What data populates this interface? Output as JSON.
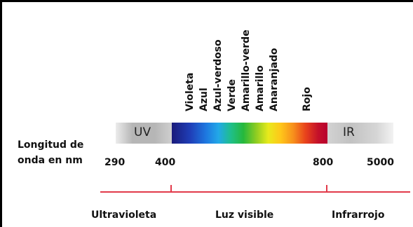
{
  "colors": {
    "labels": [
      "Violeta",
      "Azul",
      "Azul-verdoso",
      "Verde",
      "Amarillo-verde",
      "Amarillo",
      "Anaranjado",
      "Rojo"
    ]
  },
  "bar": {
    "uv_label": "UV",
    "ir_label": "IR"
  },
  "axis": {
    "caption_line1": "Longitud de",
    "caption_line2": "onda en nm",
    "ticks": [
      "290",
      "400",
      "800",
      "5000"
    ]
  },
  "ranges": {
    "ultraviolet": "Ultravioleta",
    "visible": "Luz visible",
    "infrared": "Infrarrojo"
  },
  "palette": {
    "range_line": "#e23a4a",
    "border": "#000000"
  }
}
